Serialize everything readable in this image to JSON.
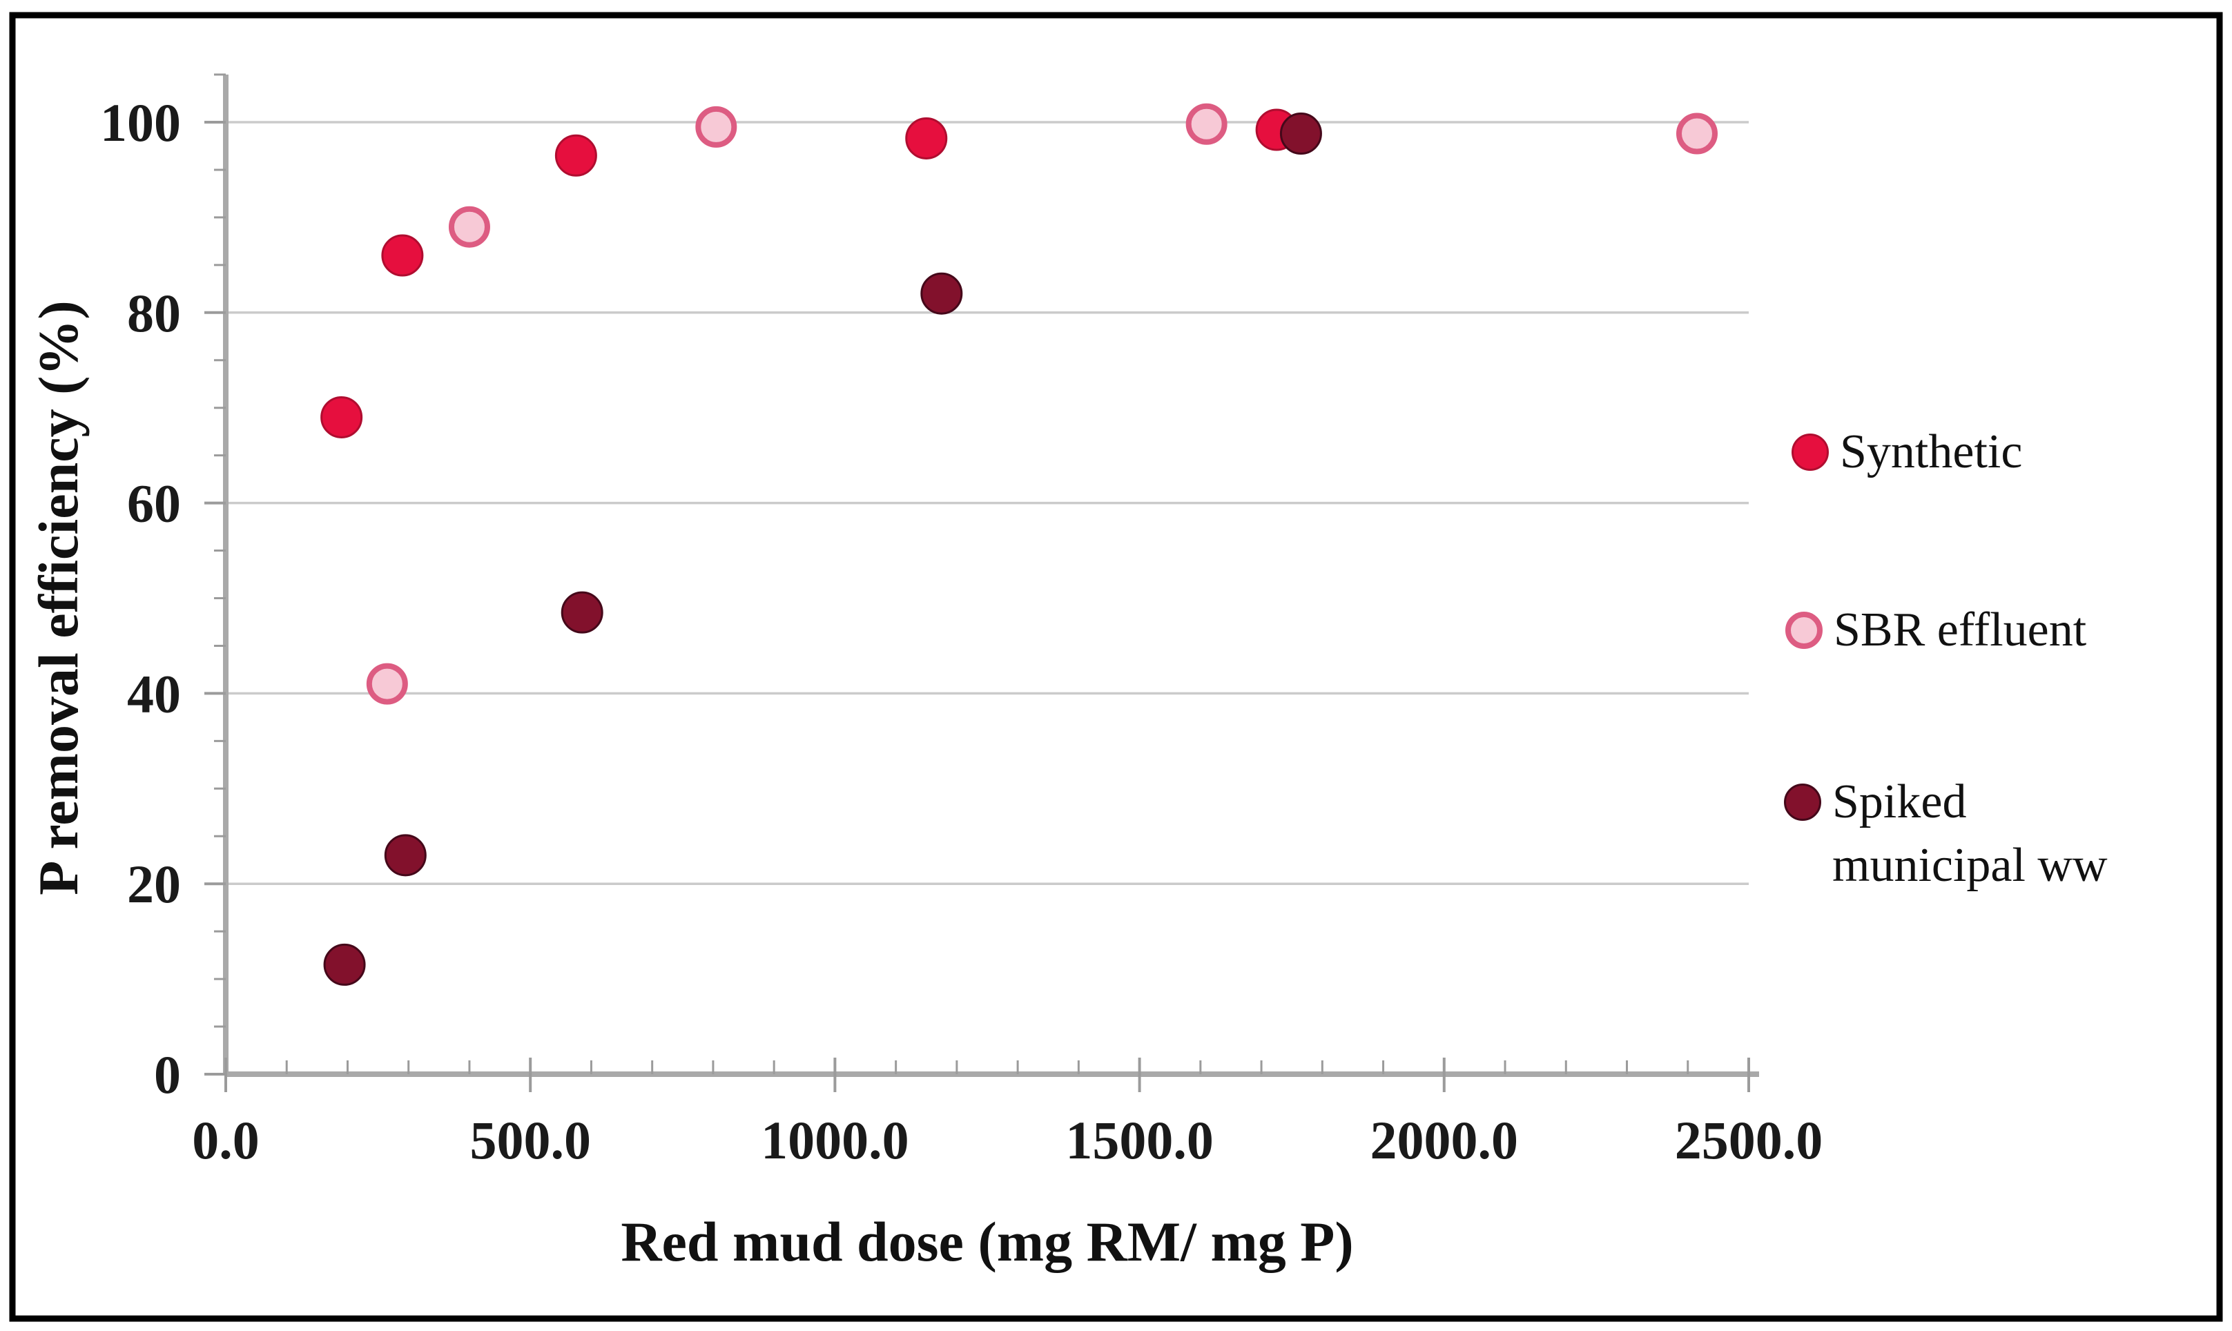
{
  "figure": {
    "border_color": "#000000",
    "background": "#ffffff"
  },
  "chart_data": {
    "type": "scatter",
    "title": "",
    "xlabel": "Red mud dose (mg RM/ mg P)",
    "ylabel": "P removal efficiency (%)",
    "xlim": [
      0,
      2500
    ],
    "ylim": [
      0,
      100
    ],
    "grid": "horizontal-only",
    "grid_color": "#cbcbcb",
    "axis_color": "#a9a9a9",
    "tick_color": "#9b9b9b",
    "legend_position": "right-outside",
    "x_tick_values": [
      0,
      500,
      1000,
      1500,
      2000,
      2500
    ],
    "x_tick_labels": [
      "0.0",
      "500.0",
      "1000.0",
      "1500.0",
      "2000.0",
      "2500.0"
    ],
    "y_tick_values": [
      0,
      20,
      40,
      60,
      80,
      100
    ],
    "y_tick_labels": [
      "0",
      "20",
      "40",
      "60",
      "80",
      "100"
    ],
    "x_minor_step": 100,
    "y_minor_step": 5,
    "series": [
      {
        "name": "Synthetic",
        "marker": "filled-circle",
        "fill": "#e60f3e",
        "edge": "#b00d30",
        "points": [
          [
            190,
            69
          ],
          [
            290,
            86
          ],
          [
            575,
            96.5
          ],
          [
            1150,
            98.3
          ],
          [
            1725,
            99.2
          ]
        ]
      },
      {
        "name": "SBR effluent",
        "marker": "open-circle",
        "fill": "#f7c9d6",
        "edge": "#dd5c82",
        "points": [
          [
            265,
            41
          ],
          [
            400,
            89
          ],
          [
            805,
            99.5
          ],
          [
            1610,
            99.8
          ],
          [
            2415,
            98.8
          ]
        ]
      },
      {
        "name": "Spiked municipal ww",
        "marker": "filled-circle",
        "fill": "#82112c",
        "edge": "#45081a",
        "points": [
          [
            195,
            11.5
          ],
          [
            295,
            23
          ],
          [
            585,
            48.5
          ],
          [
            1175,
            82
          ],
          [
            1765,
            98.8
          ]
        ]
      }
    ]
  },
  "legend": {
    "items": [
      {
        "line1": "Synthetic",
        "line2": ""
      },
      {
        "line1": "SBR effluent",
        "line2": ""
      },
      {
        "line1": "Spiked",
        "line2": "municipal ww"
      }
    ]
  }
}
